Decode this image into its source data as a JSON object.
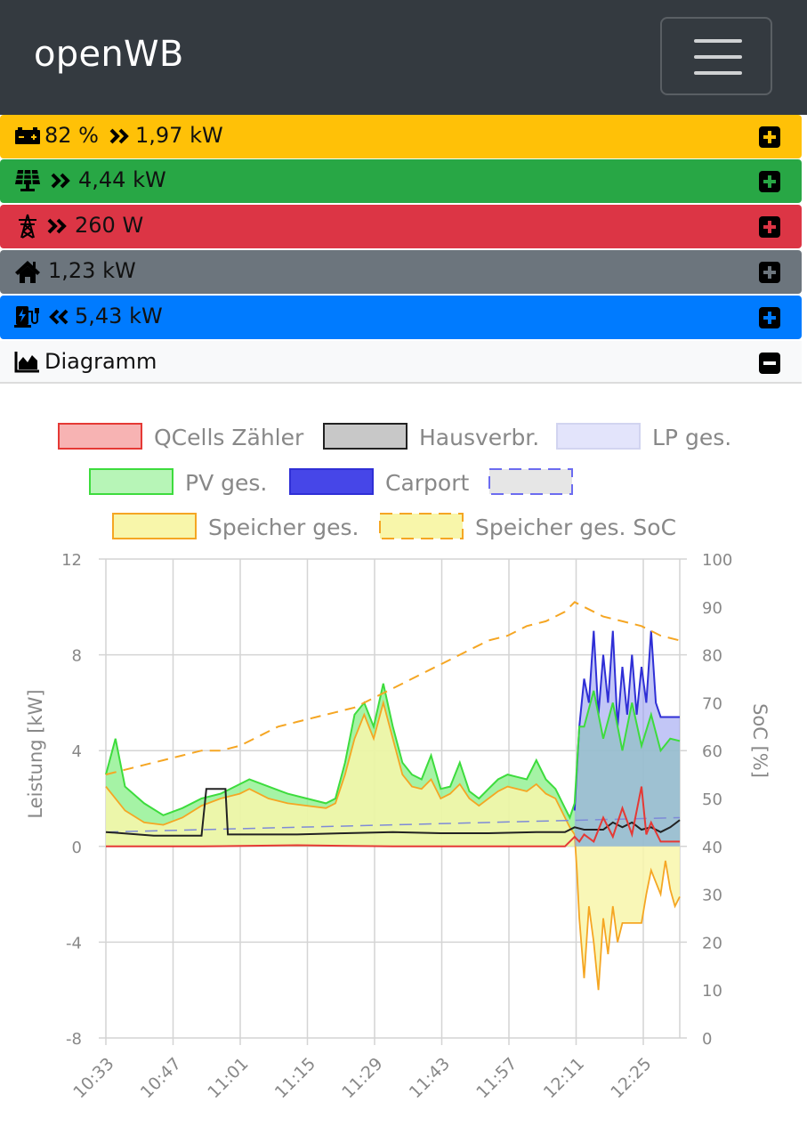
{
  "app": {
    "brand": "openWB"
  },
  "summary": {
    "speicher": {
      "soc": "82 %",
      "power": "1,97 kW",
      "color": "#ffc107",
      "icon": "battery-icon",
      "arrow": "double-chevron-right-icon"
    },
    "pv": {
      "power": "4,44 kW",
      "color": "#28a745",
      "icon": "solar-panel-icon",
      "arrow": "double-chevron-right-icon"
    },
    "evu": {
      "power": "260 W",
      "color": "#dc3545",
      "icon": "power-tower-icon",
      "arrow": "double-chevron-right-icon"
    },
    "haus": {
      "power": "1,23 kW",
      "color": "#6c757d",
      "icon": "home-icon"
    },
    "lp": {
      "power": "5,43 kW",
      "color": "#007bff",
      "icon": "charging-station-icon",
      "arrow": "double-chevron-left-icon"
    },
    "diagramm": {
      "label": "Diagramm",
      "color": "#f8f9fa",
      "icon": "area-chart-icon"
    }
  },
  "chart_data": {
    "type": "line",
    "legend": [
      {
        "name": "QCells Zähler",
        "stroke": "#e53935",
        "fill": "#f7b3b3",
        "dashed": false
      },
      {
        "name": "Hausverbr.",
        "stroke": "#222222",
        "fill": "#c8c8c8",
        "dashed": false
      },
      {
        "name": "LP ges.",
        "stroke": "#d2d4f0",
        "fill": "#e3e4fb",
        "dashed": false
      },
      {
        "name": "PV ges.",
        "stroke": "#3ddc3d",
        "fill": "#b7f5b7",
        "dashed": false
      },
      {
        "name": "Carport",
        "stroke": "#2f2fd6",
        "fill": "#4646e8",
        "dashed": false
      },
      {
        "name": "",
        "stroke": "#6c6cf0",
        "fill": "#e6e6e6",
        "dashed": true
      },
      {
        "name": "Speicher ges.",
        "stroke": "#f5a623",
        "fill": "#f8f6aa",
        "dashed": false
      },
      {
        "name": "Speicher ges. SoC",
        "stroke": "#f5a623",
        "fill": "#f8f6aa",
        "dashed": true
      }
    ],
    "x_ticks": [
      "10:33",
      "10:47",
      "11:01",
      "11:15",
      "11:29",
      "11:43",
      "11:57",
      "12:11",
      "12:25"
    ],
    "y_left": {
      "label": "Leistung [kW]",
      "min": -8,
      "max": 12,
      "ticks": [
        "12",
        "8",
        "4",
        "0",
        "-4",
        "-8"
      ]
    },
    "y_right": {
      "label": "SoC [%]",
      "min": 0,
      "max": 100,
      "ticks": [
        "100",
        "90",
        "80",
        "70",
        "60",
        "50",
        "40",
        "30",
        "20",
        "10",
        "0"
      ]
    },
    "grid": true,
    "x_range_min": [
      0,
      120
    ],
    "series_approx": {
      "pv": [
        [
          0,
          3
        ],
        [
          2,
          4.5
        ],
        [
          4,
          2.5
        ],
        [
          8,
          1.8
        ],
        [
          12,
          1.3
        ],
        [
          16,
          1.6
        ],
        [
          20,
          2
        ],
        [
          24,
          2.2
        ],
        [
          28,
          2.6
        ],
        [
          30,
          2.8
        ],
        [
          34,
          2.5
        ],
        [
          38,
          2.2
        ],
        [
          42,
          2
        ],
        [
          46,
          1.8
        ],
        [
          48,
          2
        ],
        [
          50,
          3.5
        ],
        [
          52,
          5.5
        ],
        [
          54,
          6
        ],
        [
          56,
          5
        ],
        [
          58,
          6.8
        ],
        [
          60,
          5
        ],
        [
          62,
          3.5
        ],
        [
          64,
          3
        ],
        [
          66,
          2.8
        ],
        [
          68,
          3.8
        ],
        [
          70,
          2.4
        ],
        [
          72,
          2.5
        ],
        [
          74,
          3.5
        ],
        [
          76,
          2.3
        ],
        [
          78,
          2
        ],
        [
          80,
          2.4
        ],
        [
          82,
          2.8
        ],
        [
          84,
          3
        ],
        [
          86,
          2.9
        ],
        [
          88,
          2.8
        ],
        [
          90,
          3.6
        ],
        [
          92,
          2.8
        ],
        [
          94,
          2.4
        ],
        [
          96,
          1.6
        ],
        [
          97,
          1.2
        ],
        [
          98,
          1.8
        ],
        [
          99,
          5
        ],
        [
          100,
          5
        ],
        [
          102,
          6.5
        ],
        [
          104,
          4.5
        ],
        [
          106,
          6
        ],
        [
          108,
          4
        ],
        [
          110,
          6
        ],
        [
          112,
          4.2
        ],
        [
          114,
          5.5
        ],
        [
          116,
          4
        ],
        [
          118,
          4.5
        ],
        [
          120,
          4.4
        ]
      ],
      "speicher": [
        [
          0,
          2.5
        ],
        [
          4,
          1.5
        ],
        [
          8,
          1
        ],
        [
          12,
          0.9
        ],
        [
          16,
          1.2
        ],
        [
          20,
          1.7
        ],
        [
          24,
          2
        ],
        [
          28,
          2.2
        ],
        [
          30,
          2.4
        ],
        [
          34,
          2
        ],
        [
          38,
          1.8
        ],
        [
          42,
          1.7
        ],
        [
          46,
          1.6
        ],
        [
          48,
          1.8
        ],
        [
          50,
          3
        ],
        [
          52,
          4.5
        ],
        [
          54,
          5.5
        ],
        [
          56,
          4.5
        ],
        [
          58,
          6
        ],
        [
          60,
          4.5
        ],
        [
          62,
          3
        ],
        [
          64,
          2.5
        ],
        [
          66,
          2.4
        ],
        [
          68,
          2.8
        ],
        [
          70,
          2
        ],
        [
          72,
          2.2
        ],
        [
          74,
          2.6
        ],
        [
          76,
          2
        ],
        [
          78,
          1.7
        ],
        [
          80,
          2
        ],
        [
          82,
          2.3
        ],
        [
          84,
          2.5
        ],
        [
          86,
          2.4
        ],
        [
          88,
          2.3
        ],
        [
          90,
          2.6
        ],
        [
          92,
          2.2
        ],
        [
          94,
          2
        ],
        [
          96,
          1.2
        ],
        [
          97,
          0.8
        ],
        [
          98,
          0.5
        ],
        [
          98.5,
          -1
        ],
        [
          99,
          -3
        ],
        [
          100,
          -5.5
        ],
        [
          101,
          -2.5
        ],
        [
          102,
          -4
        ],
        [
          103,
          -6
        ],
        [
          104,
          -3
        ],
        [
          105,
          -4.5
        ],
        [
          106,
          -2.5
        ],
        [
          107,
          -4
        ],
        [
          108,
          -3.2
        ],
        [
          112,
          -3.2
        ],
        [
          113,
          -2
        ],
        [
          114,
          -1
        ],
        [
          115,
          -1.5
        ],
        [
          116,
          -2
        ],
        [
          117,
          -0.6
        ],
        [
          118,
          -1.8
        ],
        [
          119,
          -2.5
        ],
        [
          120,
          -2.1
        ]
      ],
      "carport": [
        [
          98,
          1.5
        ],
        [
          99,
          5
        ],
        [
          100,
          7
        ],
        [
          101,
          6
        ],
        [
          102,
          9
        ],
        [
          103,
          5.5
        ],
        [
          104,
          8
        ],
        [
          105,
          6
        ],
        [
          106,
          9
        ],
        [
          107,
          5
        ],
        [
          108,
          7.5
        ],
        [
          109,
          5.5
        ],
        [
          110,
          8
        ],
        [
          111,
          5.5
        ],
        [
          112,
          7.5
        ],
        [
          113,
          6
        ],
        [
          114,
          9
        ],
        [
          115,
          6
        ],
        [
          116,
          5.4
        ],
        [
          120,
          5.4
        ]
      ],
      "haus": [
        [
          0,
          0.6
        ],
        [
          10,
          0.45
        ],
        [
          20,
          0.45
        ],
        [
          21,
          2.4
        ],
        [
          25,
          2.4
        ],
        [
          25.5,
          0.5
        ],
        [
          40,
          0.5
        ],
        [
          50,
          0.55
        ],
        [
          60,
          0.6
        ],
        [
          70,
          0.55
        ],
        [
          80,
          0.55
        ],
        [
          90,
          0.6
        ],
        [
          96,
          0.6
        ],
        [
          98,
          0.8
        ],
        [
          100,
          0.7
        ],
        [
          104,
          0.7
        ],
        [
          106,
          1.0
        ],
        [
          108,
          0.8
        ],
        [
          110,
          1.0
        ],
        [
          112,
          0.7
        ],
        [
          114,
          0.8
        ],
        [
          116,
          0.6
        ],
        [
          118,
          0.8
        ],
        [
          120,
          1.1
        ]
      ],
      "evu": [
        [
          0,
          0
        ],
        [
          20,
          0
        ],
        [
          40,
          0.05
        ],
        [
          60,
          0
        ],
        [
          80,
          0
        ],
        [
          96,
          0
        ],
        [
          98,
          0.4
        ],
        [
          99,
          0.2
        ],
        [
          100,
          0.5
        ],
        [
          102,
          0.2
        ],
        [
          104,
          1.2
        ],
        [
          106,
          0.4
        ],
        [
          108,
          1.6
        ],
        [
          110,
          0.5
        ],
        [
          112,
          2.5
        ],
        [
          113,
          0.5
        ],
        [
          114,
          1.0
        ],
        [
          116,
          0.2
        ],
        [
          120,
          0.2
        ]
      ],
      "lp": [
        [
          0,
          0.6
        ],
        [
          120,
          1.2
        ]
      ],
      "soc": [
        [
          0,
          55
        ],
        [
          4,
          56
        ],
        [
          8,
          57
        ],
        [
          12,
          58
        ],
        [
          16,
          59
        ],
        [
          20,
          60
        ],
        [
          24,
          60
        ],
        [
          28,
          61
        ],
        [
          32,
          63
        ],
        [
          36,
          65
        ],
        [
          40,
          66
        ],
        [
          44,
          67
        ],
        [
          48,
          68
        ],
        [
          52,
          69
        ],
        [
          56,
          71
        ],
        [
          60,
          73
        ],
        [
          64,
          75
        ],
        [
          68,
          77
        ],
        [
          72,
          79
        ],
        [
          76,
          81
        ],
        [
          80,
          83
        ],
        [
          84,
          84
        ],
        [
          88,
          86
        ],
        [
          92,
          87
        ],
        [
          96,
          89
        ],
        [
          98,
          91
        ],
        [
          100,
          90
        ],
        [
          104,
          88
        ],
        [
          108,
          87
        ],
        [
          112,
          86
        ],
        [
          116,
          84
        ],
        [
          120,
          83
        ]
      ]
    }
  }
}
